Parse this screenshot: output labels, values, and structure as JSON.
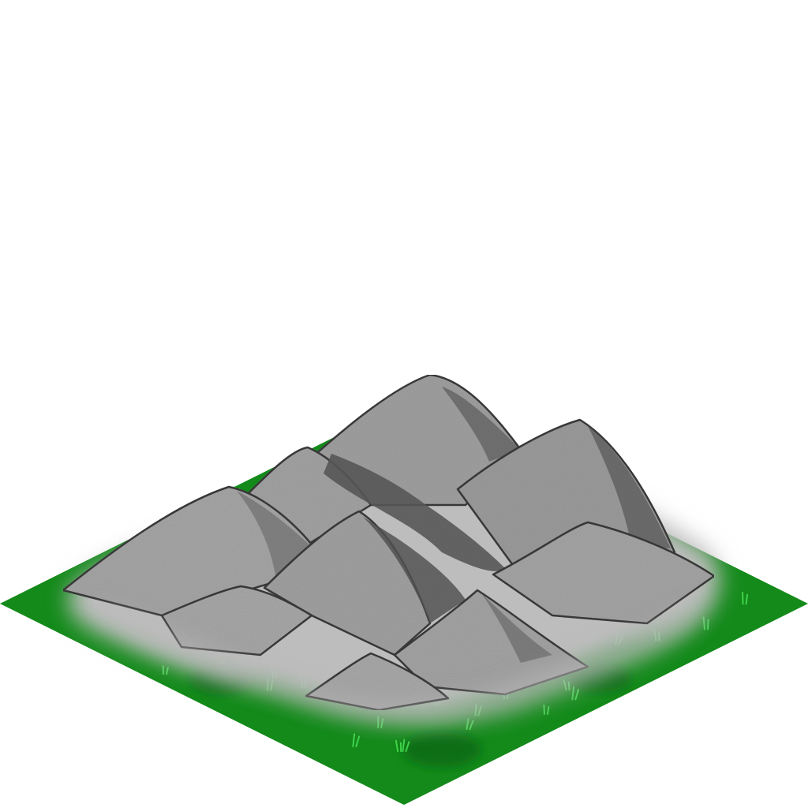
{
  "tile": {
    "terrain": "mountains",
    "base": "grass",
    "colors": {
      "background": "#ffffff",
      "grass": "#138a1a",
      "grass_dark": "#0c6e12",
      "grass_blade": "#3fd24a",
      "rock_light": "#a3a3a3",
      "rock_mid": "#8f8f8f",
      "rock_shadow": "#5e5e5e",
      "outline": "#3a3a3a",
      "mist": "#c9c9c9"
    }
  }
}
